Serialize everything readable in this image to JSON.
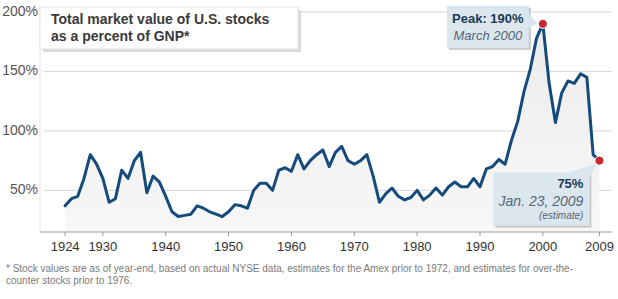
{
  "chart_data": {
    "type": "line",
    "title": [
      "Total market value of U.S. stocks",
      "as a percent of GNP*"
    ],
    "x": [
      1924,
      1925,
      1926,
      1927,
      1928,
      1929,
      1930,
      1931,
      1932,
      1933,
      1934,
      1935,
      1936,
      1937,
      1938,
      1939,
      1940,
      1941,
      1942,
      1943,
      1944,
      1945,
      1946,
      1947,
      1948,
      1949,
      1950,
      1951,
      1952,
      1953,
      1954,
      1955,
      1956,
      1957,
      1958,
      1959,
      1960,
      1961,
      1962,
      1963,
      1964,
      1965,
      1966,
      1967,
      1968,
      1969,
      1970,
      1971,
      1972,
      1973,
      1974,
      1975,
      1976,
      1977,
      1978,
      1979,
      1980,
      1981,
      1982,
      1983,
      1984,
      1985,
      1986,
      1987,
      1988,
      1989,
      1990,
      1991,
      1992,
      1993,
      1994,
      1995,
      1996,
      1997,
      1998,
      1999,
      2000,
      2001,
      2002,
      2003,
      2004,
      2005,
      2006,
      2007,
      2008,
      2009
    ],
    "values": [
      37,
      43,
      45,
      60,
      80,
      72,
      60,
      40,
      43,
      67,
      60,
      75,
      82,
      48,
      62,
      57,
      45,
      32,
      28,
      29,
      30,
      37,
      35,
      32,
      30,
      28,
      32,
      38,
      37,
      35,
      50,
      56,
      56,
      50,
      67,
      69,
      66,
      80,
      68,
      75,
      80,
      84,
      70,
      82,
      87,
      75,
      72,
      75,
      80,
      62,
      40,
      47,
      52,
      45,
      42,
      44,
      50,
      42,
      46,
      52,
      46,
      53,
      57,
      53,
      53,
      60,
      53,
      68,
      70,
      76,
      72,
      92,
      108,
      133,
      152,
      178,
      190,
      140,
      107,
      132,
      142,
      140,
      148,
      145,
      80,
      75
    ],
    "color": "#154a7c",
    "xlim": [
      1920,
      2011
    ],
    "xticks": [
      1924,
      1930,
      1940,
      1950,
      1960,
      1970,
      1980,
      1990,
      2000,
      2009
    ],
    "ylim": [
      15,
      205
    ],
    "yticks": [
      {
        "value": 50,
        "label": "50%"
      },
      {
        "value": 100,
        "label": "100%"
      },
      {
        "value": 150,
        "label": "150%"
      },
      {
        "value": 200,
        "label": "200%"
      }
    ],
    "grid": true,
    "annotations": [
      {
        "x": 2000,
        "lines": [
          "Peak: 190%",
          "March 2000"
        ]
      },
      {
        "x": 2009,
        "lines": [
          "75%",
          "Jan. 23, 2009",
          "(estimate)"
        ]
      }
    ],
    "footnote": [
      "* Stock values are as of year-end, based on actual NYSE data, estimates for the Amex prior to 1972, and estimates for over-the-",
      "counter stocks prior to 1976."
    ]
  }
}
